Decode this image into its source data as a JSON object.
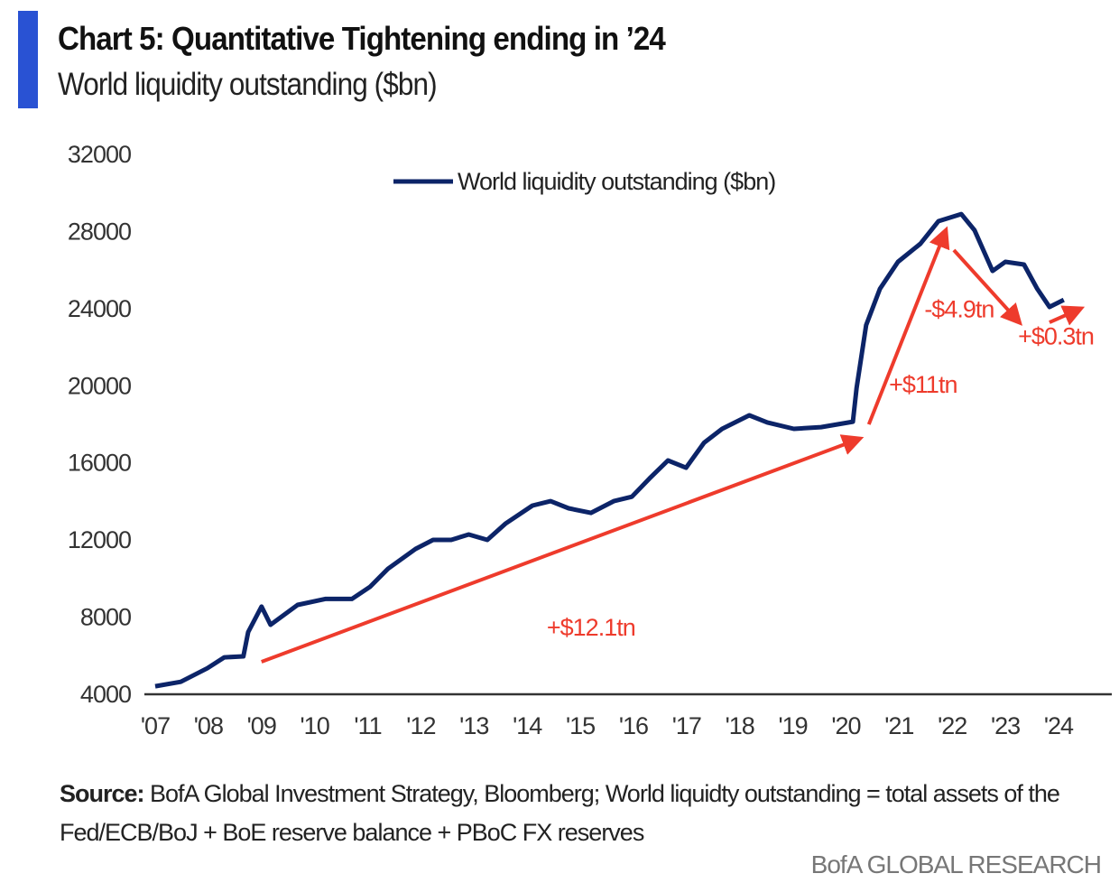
{
  "header": {
    "title": "Chart 5: Quantitative Tightening ending in ’24",
    "subtitle": "World liquidity outstanding ($bn)"
  },
  "chart_data": {
    "type": "line",
    "title": "Chart 5: Quantitative Tightening ending in ’24",
    "subtitle": "World liquidity outstanding ($bn)",
    "ylim": [
      4000,
      32000
    ],
    "yticks": [
      "32000",
      "28000",
      "24000",
      "20000",
      "16000",
      "12000",
      "8000",
      "4000"
    ],
    "xlim": [
      2007,
      2025
    ],
    "xticks": [
      "'07",
      "'08",
      "'09",
      "'10",
      "'11",
      "'12",
      "'13",
      "'14",
      "'15",
      "'16",
      "'17",
      "'18",
      "'19",
      "'20",
      "'21",
      "'22",
      "'23",
      "'24"
    ],
    "legend": {
      "position": "top-center"
    },
    "grid": false,
    "series": [
      {
        "name": "World liquidity outstanding ($bn)",
        "color": "#0c2468",
        "x": [
          2007.0,
          2007.48,
          2007.98,
          2008.3,
          2008.66,
          2008.75,
          2009.0,
          2009.17,
          2009.68,
          2010.2,
          2010.7,
          2011.04,
          2011.38,
          2011.9,
          2012.23,
          2012.57,
          2012.9,
          2013.25,
          2013.59,
          2014.1,
          2014.44,
          2014.78,
          2015.2,
          2015.63,
          2015.97,
          2016.3,
          2016.65,
          2016.99,
          2017.33,
          2017.67,
          2018.18,
          2018.52,
          2019.02,
          2019.53,
          2020.13,
          2020.2,
          2020.38,
          2020.64,
          2020.98,
          2021.4,
          2021.74,
          2022.17,
          2022.42,
          2022.76,
          2023.0,
          2023.35,
          2023.6,
          2023.83,
          2024.1
        ],
        "y": [
          4370,
          4600,
          5300,
          5870,
          5920,
          7180,
          8500,
          7560,
          8590,
          8900,
          8900,
          9520,
          10460,
          11490,
          11960,
          11960,
          12240,
          11960,
          12800,
          13740,
          13970,
          13600,
          13360,
          13970,
          14200,
          15140,
          16080,
          15700,
          17000,
          17720,
          18420,
          18050,
          17720,
          17810,
          18090,
          19830,
          23100,
          24980,
          26380,
          27320,
          28490,
          28860,
          28020,
          25910,
          26380,
          26240,
          24980,
          24040,
          24410
        ]
      }
    ],
    "annotations": [
      {
        "label": "+$12.1tn",
        "from": [
          2009.0,
          5640
        ],
        "to": [
          2020.21,
          17160
        ],
        "label_at": [
          2015.2,
          7000
        ]
      },
      {
        "label": "+$11tn",
        "from": [
          2020.43,
          17950
        ],
        "to": [
          2021.86,
          27880
        ],
        "label_at": [
          2021.45,
          19600
        ]
      },
      {
        "label": "-$4.9tn",
        "from": [
          2022.03,
          26990
        ],
        "to": [
          2023.23,
          23340
        ],
        "label_at": [
          2022.13,
          23510
        ]
      },
      {
        "label": "+$0.3tn",
        "from": [
          2023.83,
          23240
        ],
        "to": [
          2024.37,
          23900
        ],
        "label_at": [
          2023.95,
          22100
        ]
      }
    ],
    "arrow_color": "#ee3b2c"
  },
  "footer": {
    "source_label": "Source:",
    "source_text": " BofA Global Investment Strategy, Bloomberg; World liquidty outstanding = total assets of the Fed/ECB/BoJ + BoE reserve balance + PBoC FX reserves",
    "brand": "BofA GLOBAL RESEARCH"
  }
}
